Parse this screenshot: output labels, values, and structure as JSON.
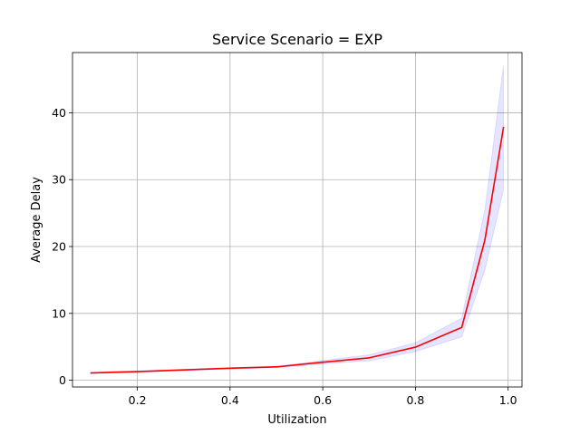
{
  "chart_data": {
    "type": "line",
    "title": "Service Scenario = EXP",
    "xlabel": "Utilization",
    "ylabel": "Average Delay",
    "xlim": [
      0.06,
      1.03
    ],
    "ylim": [
      -1.0,
      49.0
    ],
    "xticks": [
      0.2,
      0.4,
      0.6,
      0.8,
      1.0
    ],
    "xtick_labels": [
      "0.2",
      "0.4",
      "0.6",
      "0.8",
      "1.0"
    ],
    "yticks": [
      0,
      10,
      20,
      30,
      40
    ],
    "ytick_labels": [
      "0",
      "10",
      "20",
      "30",
      "40"
    ],
    "grid": true,
    "series": [
      {
        "x": [
          0.1,
          0.2,
          0.3,
          0.4,
          0.5,
          0.6,
          0.7,
          0.8,
          0.9,
          0.95,
          0.99
        ],
        "y": [
          1.1,
          1.3,
          1.55,
          1.8,
          2.0,
          2.7,
          3.35,
          4.95,
          7.9,
          21.0,
          37.8
        ],
        "ci_lower": [
          1.0,
          1.2,
          1.45,
          1.7,
          1.9,
          2.45,
          2.9,
          4.3,
          6.5,
          16.5,
          28.5
        ],
        "ci_upper": [
          1.2,
          1.4,
          1.65,
          1.9,
          2.1,
          2.95,
          3.8,
          5.6,
          9.3,
          25.5,
          47.0
        ],
        "color": "#ff0000",
        "band_color": "#0000ff"
      }
    ]
  }
}
